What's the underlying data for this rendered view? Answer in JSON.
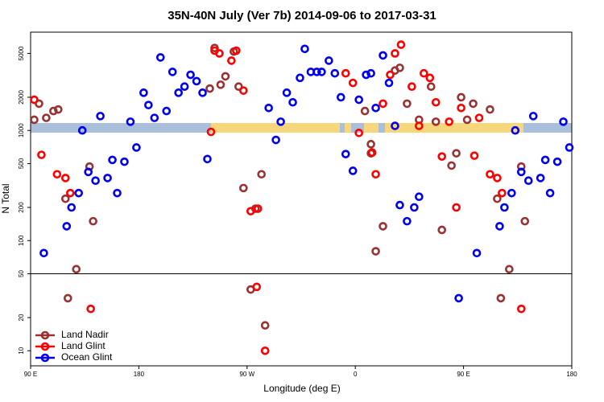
{
  "chart_data": {
    "type": "scatter",
    "title": "35N-40N July (Ver 7b)   2014-09-06 to 2017-03-31",
    "x_label": "Longitude (deg E)",
    "y_label": "N Total",
    "xlim": [
      90,
      540
    ],
    "ylim": [
      7.3,
      7800
    ],
    "log_y": true,
    "legend": "lower left",
    "hline": 50,
    "xticks": [
      {
        "value": 90,
        "label": "90 E"
      },
      {
        "value": 180,
        "label": "180"
      },
      {
        "value": 270,
        "label": "90 W"
      },
      {
        "value": 360,
        "label": "0"
      },
      {
        "value": 450,
        "label": "90 E"
      },
      {
        "value": 540,
        "label": "180"
      }
    ],
    "yticks": [
      5000,
      2000,
      1000,
      500,
      200,
      100,
      50,
      20,
      10
    ],
    "series": [
      {
        "name": "Land Nadir",
        "color": "#993333",
        "x": [
          93,
          97,
          103,
          109,
          113,
          119,
          121,
          128,
          139,
          142,
          239,
          243,
          248,
          252,
          259,
          263,
          267,
          273,
          277,
          282,
          285,
          368,
          373,
          373,
          377,
          383,
          393,
          397,
          403,
          413,
          423,
          427,
          432,
          440,
          444,
          448,
          453,
          458,
          472,
          478,
          481,
          488,
          498,
          501
        ],
        "values": [
          1250,
          1750,
          1300,
          1500,
          1550,
          240,
          30,
          55,
          470,
          150,
          2400,
          5600,
          2600,
          3100,
          5200,
          2500,
          300,
          36,
          195,
          400,
          17,
          1500,
          750,
          620,
          80,
          135,
          3500,
          3700,
          1750,
          1250,
          2500,
          1200,
          125,
          480,
          620,
          2000,
          1250,
          1750,
          1550,
          240,
          30,
          55,
          470,
          150
        ]
      },
      {
        "name": "Land Glint",
        "color": "#ff0000",
        "x": [
          93,
          99,
          112,
          119,
          123,
          140,
          240,
          243,
          247,
          257,
          261,
          267,
          273,
          279,
          278,
          285,
          352,
          358,
          363,
          374,
          377,
          383,
          389,
          393,
          398,
          407,
          413,
          417,
          422,
          427,
          432,
          438,
          444,
          448,
          459,
          463,
          472,
          478,
          482,
          498
        ],
        "values": [
          1900,
          600,
          400,
          370,
          270,
          24,
          970,
          5300,
          5000,
          4300,
          5300,
          2300,
          185,
          195,
          38,
          10,
          3300,
          2700,
          950,
          630,
          400,
          1750,
          3200,
          5000,
          6000,
          2500,
          1100,
          3300,
          3000,
          1800,
          580,
          1200,
          200,
          1600,
          590,
          1300,
          400,
          370,
          270,
          24
        ]
      },
      {
        "name": "Ocean Glint",
        "color": "#0000ee",
        "x": [
          101,
          120,
          124,
          130,
          133,
          138,
          144,
          148,
          154,
          158,
          162,
          168,
          173,
          178,
          184,
          188,
          193,
          198,
          203,
          208,
          213,
          218,
          223,
          228,
          233,
          237,
          288,
          294,
          298,
          303,
          308,
          314,
          318,
          323,
          328,
          332,
          338,
          343,
          348,
          352,
          358,
          363,
          369,
          373,
          377,
          383,
          388,
          393,
          397,
          403,
          409,
          413,
          446,
          461,
          480,
          484,
          490,
          493,
          498,
          504,
          508,
          514,
          518,
          522,
          528,
          533,
          538
        ],
        "values": [
          77,
          135,
          200,
          270,
          1000,
          420,
          350,
          1350,
          370,
          540,
          270,
          520,
          1200,
          700,
          2200,
          1700,
          1300,
          4600,
          1500,
          3400,
          2200,
          2500,
          3200,
          2800,
          2200,
          550,
          1600,
          820,
          1200,
          2200,
          1800,
          3000,
          5500,
          3400,
          3400,
          3400,
          4300,
          3300,
          2000,
          610,
          430,
          1900,
          3200,
          3300,
          1600,
          4800,
          2700,
          1100,
          210,
          150,
          200,
          250,
          30,
          77,
          135,
          200,
          270,
          1000,
          420,
          350,
          1350,
          370,
          540,
          270,
          520,
          1200,
          700
        ]
      }
    ]
  }
}
